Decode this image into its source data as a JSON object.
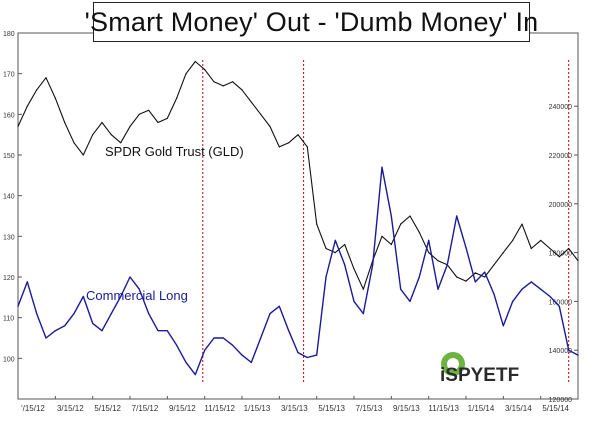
{
  "chart_data": {
    "type": "line",
    "title": "'Smart Money' Out - 'Dumb Money' In",
    "x_tick_labels": [
      "'/15/12",
      "3/15/12",
      "5/15/12",
      "7/15/12",
      "9/15/12",
      "11/15/12",
      "1/15/13",
      "3/15/13",
      "5/15/13",
      "7/15/13",
      "9/15/13",
      "11/15/13",
      "1/15/14",
      "3/15/14",
      "5/15/14"
    ],
    "x_range": [
      0,
      30
    ],
    "left_axis": {
      "ticks": [
        180,
        170,
        160,
        150,
        140,
        130,
        120,
        110,
        100
      ],
      "range": [
        90,
        180
      ]
    },
    "right_axis": {
      "ticks": [
        240000,
        220000,
        200000,
        180000,
        160000,
        140000,
        120000
      ],
      "range": [
        120000,
        270000
      ]
    },
    "series": [
      {
        "name": "SPDR Gold Trust (GLD)",
        "axis": "left",
        "color": "#111111",
        "x": [
          0,
          0.5,
          1,
          1.5,
          2,
          2.5,
          3,
          3.5,
          4,
          4.5,
          5,
          5.5,
          6,
          6.5,
          7,
          7.5,
          8,
          8.5,
          9,
          9.5,
          10,
          10.5,
          11,
          11.5,
          12,
          12.5,
          13,
          13.5,
          14,
          14.5,
          15,
          15.5,
          16,
          16.5,
          17,
          17.5,
          18,
          18.5,
          19,
          19.5,
          20,
          20.5,
          21,
          21.5,
          22,
          22.5,
          23,
          23.5,
          24,
          24.5,
          25,
          25.5,
          26,
          26.5,
          27,
          27.5,
          28,
          28.5,
          29,
          29.5,
          30
        ],
        "values": [
          157,
          162,
          166,
          169,
          164,
          158,
          153,
          150,
          155,
          158,
          155,
          153,
          157,
          160,
          161,
          158,
          159,
          164,
          170,
          173,
          171,
          168,
          167,
          168,
          166,
          163,
          160,
          157,
          152,
          153,
          155,
          152,
          133,
          127,
          126,
          128,
          122,
          117,
          124,
          130,
          128,
          133,
          135,
          131,
          126,
          124,
          123,
          120,
          119,
          121,
          120,
          123,
          126,
          129,
          133,
          127,
          129,
          127,
          125,
          127,
          124
        ]
      },
      {
        "name": "Commercial Long",
        "axis": "right",
        "color": "#1a1a9a",
        "x": [
          0,
          0.5,
          1,
          1.5,
          2,
          2.5,
          3,
          3.5,
          4,
          4.5,
          5,
          5.5,
          6,
          6.5,
          7,
          7.5,
          8,
          8.5,
          9,
          9.5,
          10,
          10.5,
          11,
          11.5,
          12,
          12.5,
          13,
          13.5,
          14,
          14.5,
          15,
          15.5,
          16,
          16.5,
          17,
          17.5,
          18,
          18.5,
          19,
          19.5,
          20,
          20.5,
          21,
          21.5,
          22,
          22.5,
          23,
          23.5,
          24,
          24.5,
          25,
          25.5,
          26,
          26.5,
          27,
          27.5,
          28,
          28.5,
          29,
          29.5,
          30
        ],
        "values": [
          158000,
          168000,
          155000,
          145000,
          148000,
          150000,
          155000,
          162000,
          151000,
          148000,
          155000,
          162000,
          170000,
          165000,
          155000,
          148000,
          148000,
          142000,
          135000,
          130000,
          140000,
          145000,
          145000,
          142000,
          138000,
          135000,
          145000,
          155000,
          158000,
          148000,
          139000,
          137000,
          138000,
          170000,
          185000,
          175000,
          160000,
          155000,
          175000,
          215000,
          195000,
          165000,
          160000,
          170000,
          185000,
          165000,
          175000,
          195000,
          182000,
          168000,
          172000,
          163000,
          150000,
          160000,
          165000,
          168000,
          165000,
          162000,
          158000,
          140000,
          138000
        ]
      }
    ],
    "annotations": [
      {
        "text": "SPDR Gold Trust (GLD)",
        "color": "#111111"
      },
      {
        "text": "Commercial Long",
        "color": "#1a1a9a"
      }
    ],
    "markers_x": [
      9.9,
      15.3,
      29.5
    ],
    "marker_color": "#cc0000",
    "logo": {
      "text": "iSPYETF",
      "colors": [
        "#6db33f",
        "#2b2b2b"
      ]
    }
  }
}
